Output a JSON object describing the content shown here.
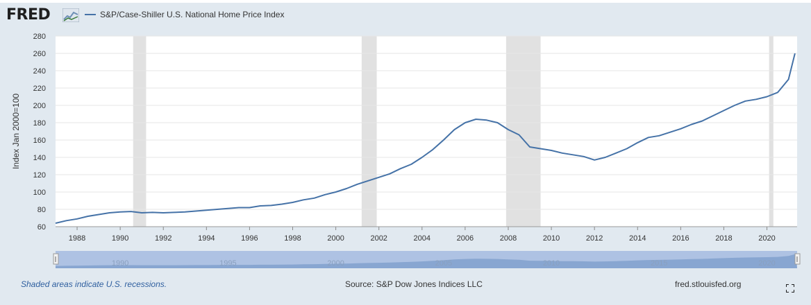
{
  "header": {
    "logo_text": "FRED",
    "series_label": "S&P/Case-Shiller U.S. National Home Price Index"
  },
  "footer": {
    "recession_note": "Shaded areas indicate U.S. recessions.",
    "source": "Source: S&P Dow Jones Indices LLC",
    "site": "fred.stlouisfed.org"
  },
  "colors": {
    "line": "#4572a7",
    "recession": "#e1e1e1",
    "background": "#e1e9f0",
    "navigator_fill": "#aab9d6"
  },
  "chart_data": {
    "type": "line",
    "title": "",
    "xlabel": "",
    "ylabel": "Index Jan 2000=100",
    "ylim": [
      60,
      280
    ],
    "xlim": [
      1987.0,
      2021.4
    ],
    "yticks": [
      60,
      80,
      100,
      120,
      140,
      160,
      180,
      200,
      220,
      240,
      260,
      280
    ],
    "xticks": [
      "1988",
      "1990",
      "1992",
      "1994",
      "1996",
      "1998",
      "2000",
      "2002",
      "2004",
      "2006",
      "2008",
      "2010",
      "2012",
      "2014",
      "2016",
      "2018",
      "2020"
    ],
    "grid": true,
    "recessions": [
      [
        1990.6,
        1991.2
      ],
      [
        2001.2,
        2001.9
      ],
      [
        2007.9,
        2009.5
      ],
      [
        2020.1,
        2020.3
      ]
    ],
    "series": [
      {
        "name": "S&P/Case-Shiller U.S. National Home Price Index",
        "x": [
          1987.0,
          1987.5,
          1988.0,
          1988.5,
          1989.0,
          1989.5,
          1990.0,
          1990.5,
          1991.0,
          1991.5,
          1992.0,
          1992.5,
          1993.0,
          1993.5,
          1994.0,
          1994.5,
          1995.0,
          1995.5,
          1996.0,
          1996.5,
          1997.0,
          1997.5,
          1998.0,
          1998.5,
          1999.0,
          1999.5,
          2000.0,
          2000.5,
          2001.0,
          2001.5,
          2002.0,
          2002.5,
          2003.0,
          2003.5,
          2004.0,
          2004.5,
          2005.0,
          2005.5,
          2006.0,
          2006.5,
          2007.0,
          2007.5,
          2008.0,
          2008.5,
          2009.0,
          2009.5,
          2010.0,
          2010.5,
          2011.0,
          2011.5,
          2012.0,
          2012.5,
          2013.0,
          2013.5,
          2014.0,
          2014.5,
          2015.0,
          2015.5,
          2016.0,
          2016.5,
          2017.0,
          2017.5,
          2018.0,
          2018.5,
          2019.0,
          2019.5,
          2020.0,
          2020.5,
          2021.0,
          2021.3
        ],
        "y": [
          64,
          67,
          69,
          72,
          74,
          76,
          77,
          77.5,
          76,
          76.5,
          76,
          76.5,
          77,
          78,
          79,
          80,
          81,
          82,
          82,
          84,
          84.5,
          86,
          88,
          91,
          93,
          97,
          100,
          104,
          109,
          113,
          117,
          121,
          127,
          132,
          140,
          149,
          160,
          172,
          180,
          184,
          183,
          180,
          172,
          166,
          152,
          150,
          148,
          145,
          143,
          141,
          137,
          140,
          145,
          150,
          157,
          163,
          165,
          169,
          173,
          178,
          182,
          188,
          194,
          200,
          205,
          207,
          210,
          215,
          230,
          260
        ]
      }
    ]
  },
  "navigator": {
    "year_labels": [
      "1990",
      "1995",
      "2000",
      "2005",
      "2010",
      "2015",
      "2020"
    ]
  }
}
